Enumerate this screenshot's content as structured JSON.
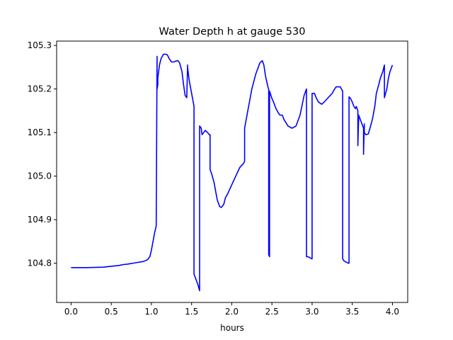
{
  "chart_data": {
    "type": "line",
    "title": "Water Depth h at gauge 530",
    "xlabel": "hours",
    "ylabel": "",
    "xlim": [
      -0.18,
      4.19
    ],
    "ylim": [
      104.71,
      105.31
    ],
    "xticks": [
      0.0,
      0.5,
      1.0,
      1.5,
      2.0,
      2.5,
      3.0,
      3.5,
      4.0
    ],
    "xtick_labels": [
      "0.0",
      "0.5",
      "1.0",
      "1.5",
      "2.0",
      "2.5",
      "3.0",
      "3.5",
      "4.0"
    ],
    "yticks": [
      104.8,
      104.9,
      105.0,
      105.1,
      105.2,
      105.3
    ],
    "ytick_labels": [
      "104.8",
      "104.9",
      "105.0",
      "105.1",
      "105.2",
      "105.3"
    ],
    "grid": false,
    "series": [
      {
        "color": "#0000ff",
        "x": [
          0.0,
          0.2,
          0.4,
          0.6,
          0.65,
          0.7,
          0.8,
          0.9,
          0.95,
          0.98,
          1.0,
          1.02,
          1.04,
          1.06,
          1.07,
          1.07,
          1.08,
          1.08,
          1.09,
          1.1,
          1.12,
          1.15,
          1.18,
          1.2,
          1.22,
          1.25,
          1.28,
          1.3,
          1.33,
          1.35,
          1.38,
          1.4,
          1.42,
          1.44,
          1.45,
          1.45,
          1.47,
          1.5,
          1.52,
          1.53,
          1.53,
          1.55,
          1.58,
          1.6,
          1.6,
          1.62,
          1.63,
          1.65,
          1.67,
          1.7,
          1.72,
          1.73,
          1.73,
          1.75,
          1.78,
          1.8,
          1.82,
          1.85,
          1.87,
          1.9,
          1.92,
          1.95,
          2.0,
          2.05,
          2.1,
          2.15,
          2.16,
          2.16,
          2.2,
          2.25,
          2.3,
          2.35,
          2.38,
          2.4,
          2.42,
          2.45,
          2.46,
          2.46,
          2.47,
          2.47,
          2.48,
          2.5,
          2.52,
          2.55,
          2.58,
          2.6,
          2.63,
          2.65,
          2.7,
          2.75,
          2.8,
          2.85,
          2.9,
          2.93,
          2.93,
          2.95,
          2.98,
          3.0,
          3.0,
          3.03,
          3.05,
          3.08,
          3.12,
          3.15,
          3.2,
          3.25,
          3.28,
          3.3,
          3.35,
          3.38,
          3.38,
          3.4,
          3.45,
          3.46,
          3.46,
          3.48,
          3.5,
          3.52,
          3.54,
          3.55,
          3.57,
          3.57,
          3.58,
          3.6,
          3.62,
          3.64,
          3.64,
          3.65,
          3.65,
          3.67,
          3.7,
          3.72,
          3.75,
          3.78,
          3.8,
          3.83,
          3.85,
          3.88,
          3.9,
          3.9,
          3.93,
          3.95,
          3.97,
          4.0
        ],
        "y": [
          104.79,
          104.79,
          104.791,
          104.795,
          104.797,
          104.798,
          104.801,
          104.804,
          104.808,
          104.815,
          104.83,
          104.85,
          104.87,
          104.886,
          105.275,
          105.2,
          105.21,
          105.225,
          105.24,
          105.255,
          105.27,
          105.28,
          105.28,
          105.278,
          105.27,
          105.262,
          105.262,
          105.264,
          105.265,
          105.26,
          105.24,
          105.21,
          105.185,
          105.18,
          105.255,
          105.25,
          105.22,
          105.19,
          105.17,
          105.16,
          104.775,
          104.765,
          104.75,
          104.737,
          105.115,
          105.11,
          105.095,
          105.1,
          105.105,
          105.1,
          105.095,
          105.095,
          105.015,
          105.005,
          104.985,
          104.965,
          104.945,
          104.93,
          104.928,
          104.935,
          104.95,
          104.96,
          104.98,
          105.0,
          105.02,
          105.03,
          105.035,
          105.11,
          105.15,
          105.2,
          105.235,
          105.26,
          105.265,
          105.255,
          105.23,
          105.205,
          105.2,
          104.82,
          104.815,
          105.195,
          105.19,
          105.178,
          105.17,
          105.155,
          105.145,
          105.14,
          105.14,
          105.13,
          105.115,
          105.11,
          105.115,
          105.14,
          105.185,
          105.2,
          104.815,
          104.815,
          104.812,
          104.81,
          105.19,
          105.19,
          105.18,
          105.17,
          105.165,
          105.17,
          105.18,
          105.19,
          105.2,
          105.205,
          105.205,
          105.195,
          104.81,
          104.805,
          104.8,
          104.8,
          105.182,
          105.178,
          105.17,
          105.16,
          105.155,
          105.16,
          105.15,
          105.07,
          105.14,
          105.13,
          105.12,
          105.11,
          105.05,
          105.12,
          105.1,
          105.095,
          105.097,
          105.11,
          105.13,
          105.16,
          105.19,
          105.21,
          105.225,
          105.24,
          105.255,
          105.18,
          105.2,
          105.225,
          105.24,
          105.255
        ]
      }
    ]
  }
}
